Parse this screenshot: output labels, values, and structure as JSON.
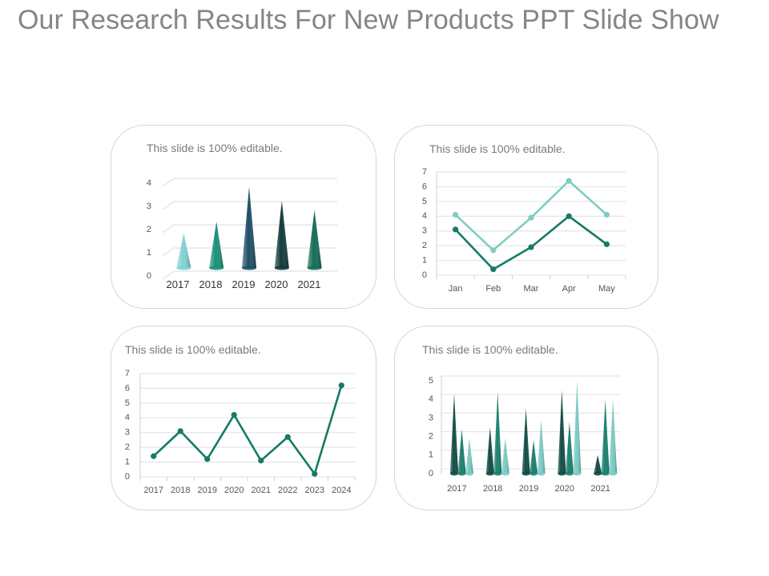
{
  "slide": {
    "title": "Our Research Results For New Products PPT Slide Show"
  },
  "colors": {
    "teal_dark": "#157a66",
    "teal_light": "#7ecdc4",
    "navy": "#1f4e68",
    "gray_text": "#858585"
  },
  "panels": [
    {
      "caption": "This slide is 100% editable."
    },
    {
      "caption": "This slide is 100% editable."
    },
    {
      "caption": "This slide is 100% editable."
    },
    {
      "caption": "This slide is 100% editable."
    }
  ],
  "chart_data": [
    {
      "type": "bar",
      "shape": "cone",
      "categories": [
        "2017",
        "2018",
        "2019",
        "2020",
        "2021"
      ],
      "values": [
        1.5,
        2.0,
        3.5,
        2.9,
        2.5
      ],
      "bar_colors": [
        "#7fd3d3",
        "#1a8f78",
        "#1e4e66",
        "#0f3a3a",
        "#156b58"
      ],
      "yticks": [
        0,
        1,
        2,
        3,
        4
      ],
      "ylim": [
        0,
        4
      ],
      "grid": true
    },
    {
      "type": "line",
      "categories": [
        "Jan",
        "Feb",
        "Mar",
        "Apr",
        "May"
      ],
      "series": [
        {
          "values": [
            4.1,
            1.7,
            3.9,
            6.4,
            4.1
          ],
          "color": "#7ecdc4"
        },
        {
          "values": [
            3.1,
            0.4,
            1.9,
            4.0,
            2.1
          ],
          "color": "#157a66"
        }
      ],
      "yticks": [
        0,
        1,
        2,
        3,
        4,
        5,
        6,
        7
      ],
      "ylim": [
        0,
        7
      ],
      "grid": true
    },
    {
      "type": "line",
      "categories": [
        "2017",
        "2018",
        "2019",
        "2020",
        "2021",
        "2022",
        "2023",
        "2024"
      ],
      "series": [
        {
          "values": [
            1.4,
            3.1,
            1.2,
            4.2,
            1.1,
            2.7,
            0.2,
            6.2
          ],
          "color": "#157a66"
        }
      ],
      "yticks": [
        0,
        1,
        2,
        3,
        4,
        5,
        6,
        7
      ],
      "ylim": [
        0,
        7
      ],
      "grid": true
    },
    {
      "type": "bar",
      "shape": "cone",
      "categories": [
        "2017",
        "2018",
        "2019",
        "2020",
        "2021"
      ],
      "series": [
        {
          "values": [
            4.3,
            2.5,
            3.5,
            4.5,
            1.0
          ],
          "color": "#0f4a44"
        },
        {
          "values": [
            2.4,
            4.4,
            1.8,
            2.8,
            4.0
          ],
          "color": "#17806c"
        },
        {
          "values": [
            1.9,
            1.9,
            2.9,
            5.0,
            4.0
          ],
          "color": "#79cbc5"
        }
      ],
      "yticks": [
        0,
        1,
        2,
        3,
        4,
        5
      ],
      "ylim": [
        0,
        5
      ],
      "grid": true
    }
  ]
}
